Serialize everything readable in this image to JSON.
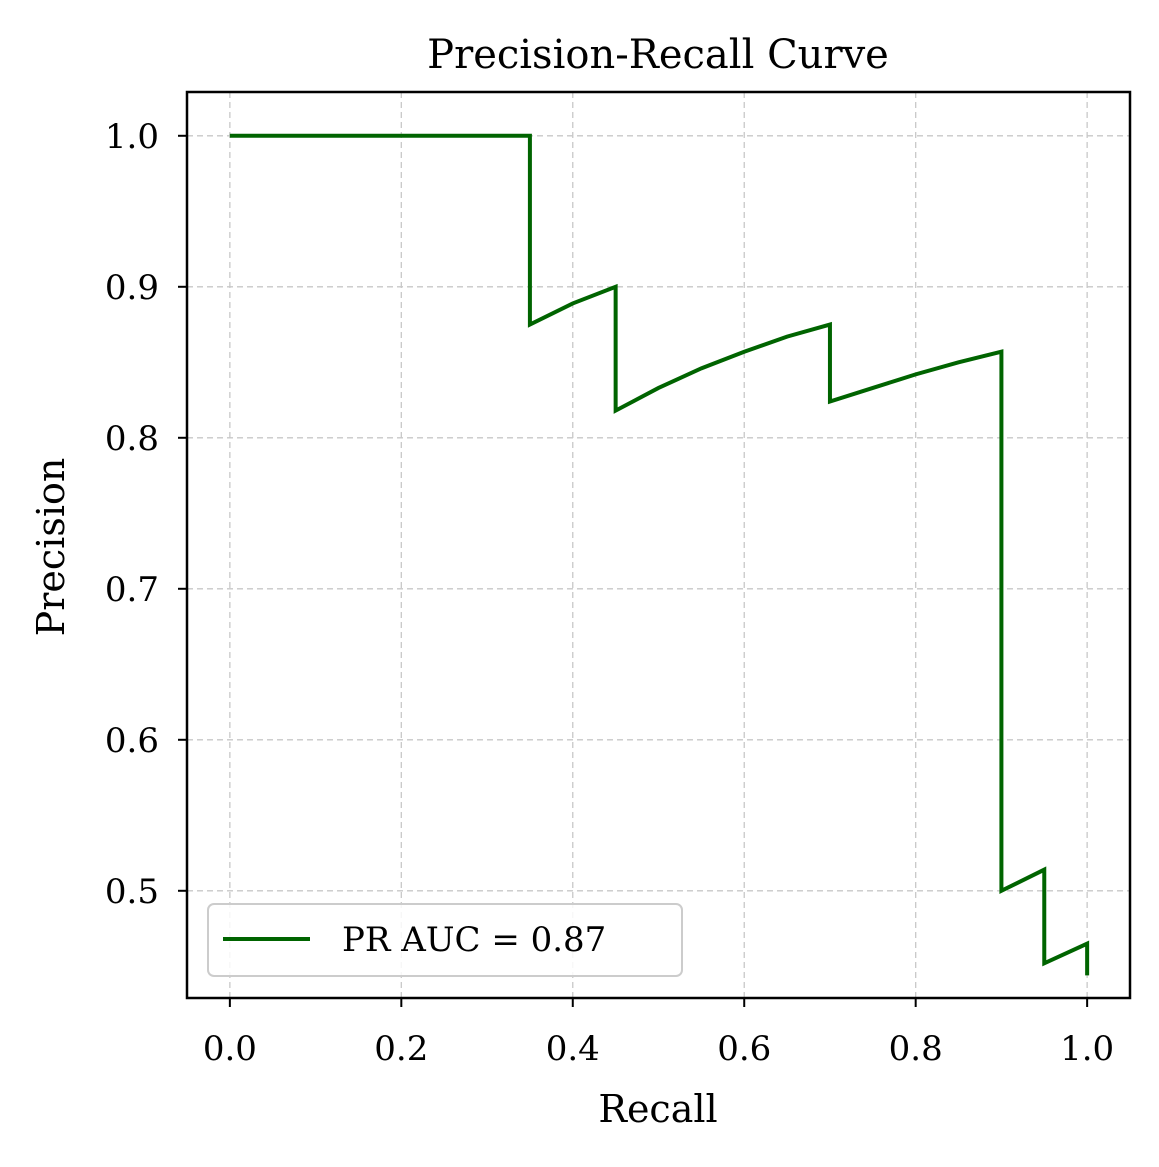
{
  "chart_data": {
    "type": "line",
    "title": "Precision-Recall Curve",
    "xlabel": "Recall",
    "ylabel": "Precision",
    "xlim": [
      -0.05,
      1.05
    ],
    "ylim": [
      0.429,
      1.029
    ],
    "xticks": [
      0.0,
      0.2,
      0.4,
      0.6,
      0.8,
      1.0
    ],
    "xtick_labels": [
      "0.0",
      "0.2",
      "0.4",
      "0.6",
      "0.8",
      "1.0"
    ],
    "yticks": [
      0.5,
      0.6,
      0.7,
      0.8,
      0.9,
      1.0
    ],
    "ytick_labels": [
      "0.5",
      "0.6",
      "0.7",
      "0.8",
      "0.9",
      "1.0"
    ],
    "grid": true,
    "grid_style": "dashed",
    "legend_position": "lower-left",
    "series": [
      {
        "name": "PR AUC = 0.87",
        "color": "#006400",
        "drawstyle": "steps",
        "x": [
          0.0,
          0.35,
          0.35,
          0.4,
          0.45,
          0.45,
          0.5,
          0.55,
          0.6,
          0.65,
          0.7,
          0.7,
          0.75,
          0.8,
          0.85,
          0.9,
          0.9,
          0.95,
          0.95,
          1.0,
          1.0
        ],
        "y": [
          1.0,
          1.0,
          0.875,
          0.889,
          0.9,
          0.818,
          0.833,
          0.846,
          0.857,
          0.867,
          0.875,
          0.824,
          0.833,
          0.842,
          0.85,
          0.857,
          0.5,
          0.514,
          0.452,
          0.465,
          0.444
        ]
      }
    ]
  }
}
